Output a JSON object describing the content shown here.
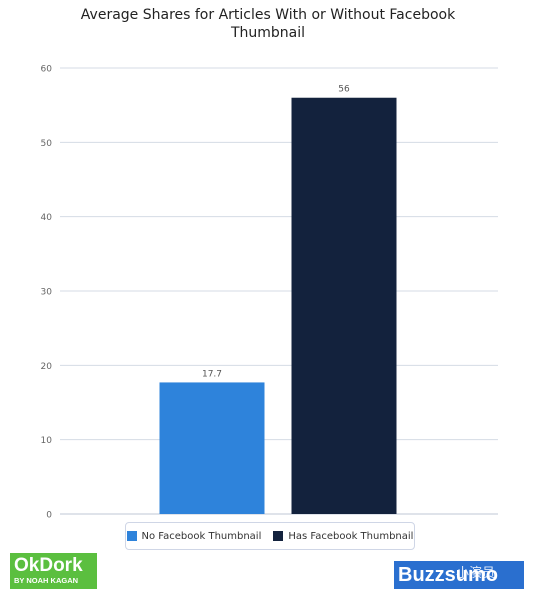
{
  "chart_data": {
    "type": "bar",
    "title": "Average Shares for Articles With or Without Facebook Thumbnail",
    "title_lines": [
      "Average Shares for Articles With or Without Facebook",
      "Thumbnail"
    ],
    "categories": [
      "No Facebook Thumbnail",
      "Has Facebook Thumbnail"
    ],
    "values": [
      17.7,
      56
    ],
    "data_labels": [
      "17.7",
      "56"
    ],
    "colors": [
      "#2e83db",
      "#13223d"
    ],
    "ylim": [
      0,
      60
    ],
    "y_ticks": [
      "0",
      "10",
      "20",
      "30",
      "40",
      "50",
      "60"
    ],
    "grid": true,
    "legend_position": "bottom-center",
    "legend": [
      "No Facebook Thumbnail",
      "Has Facebook Thumbnail"
    ]
  },
  "branding": {
    "okdork": "OkDork",
    "okdork_sub": "BY NOAH KAGAN",
    "buzzsumo": "Buzzsumo",
    "watermark": "小演员"
  }
}
